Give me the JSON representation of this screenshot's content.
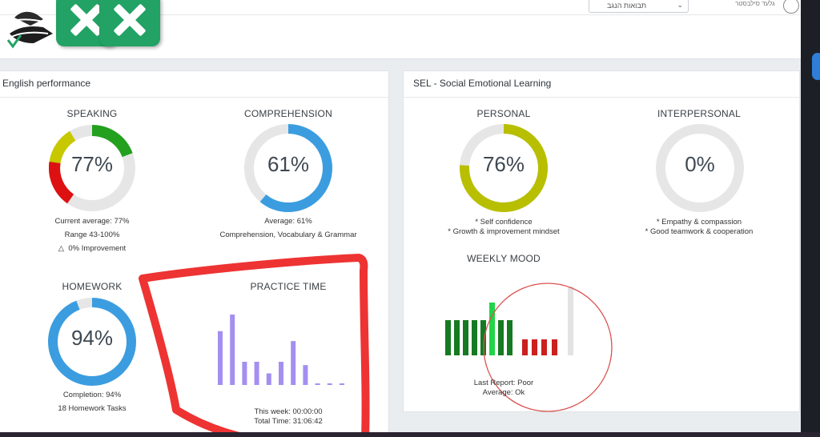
{
  "header": {
    "select_value": "תבואות הנגב",
    "user_name": "גלעד סילבסטר"
  },
  "english": {
    "title": "English performance",
    "speaking": {
      "title": "SPEAKING",
      "value": "77%",
      "percent": 77,
      "line1": "Current average: 77%",
      "line2": "Range 43-100%",
      "line3": "0% Improvement",
      "delta_icon": "△"
    },
    "comprehension": {
      "title": "COMPREHENSION",
      "value": "61%",
      "percent": 61,
      "line1": "Average: 61%",
      "line2": "Comprehension, Vocabulary & Grammar"
    },
    "homework": {
      "title": "HOMEWORK",
      "value": "94%",
      "percent": 94,
      "line1": "Completion: 94%",
      "line2": "18 Homework Tasks"
    },
    "practice": {
      "title": "PRACTICE TIME",
      "bars": [
        65,
        85,
        28,
        28,
        14,
        28,
        53,
        24,
        0,
        0.3,
        0.3
      ],
      "week": "This week: 00:00:00",
      "total": "Total Time: 31:06:42"
    }
  },
  "sel": {
    "title": "SEL - Social Emotional Learning",
    "personal": {
      "title": "PERSONAL",
      "value": "76%",
      "percent": 76,
      "line1": "* Self confidence",
      "line2": "* Growth & improvement mindset"
    },
    "interpersonal": {
      "title": "INTERPERSONAL",
      "value": "0%",
      "percent": 0,
      "line1": "* Empathy & compassion",
      "line2": "* Good teamwork & cooperation"
    },
    "mood": {
      "title": "WEEKLY MOOD",
      "last_report": "Last Report: Poor",
      "average": "Average: Ok"
    }
  },
  "colors": {
    "blue": "#3b9de0",
    "olive": "#b8bf00",
    "track": "#e6e6e6",
    "purple": "#a48ff0",
    "mood_green_dark": "#157a21",
    "mood_green_light": "#22d447",
    "mood_red": "#cc1f1f",
    "annotation_red": "#ee3333"
  }
}
